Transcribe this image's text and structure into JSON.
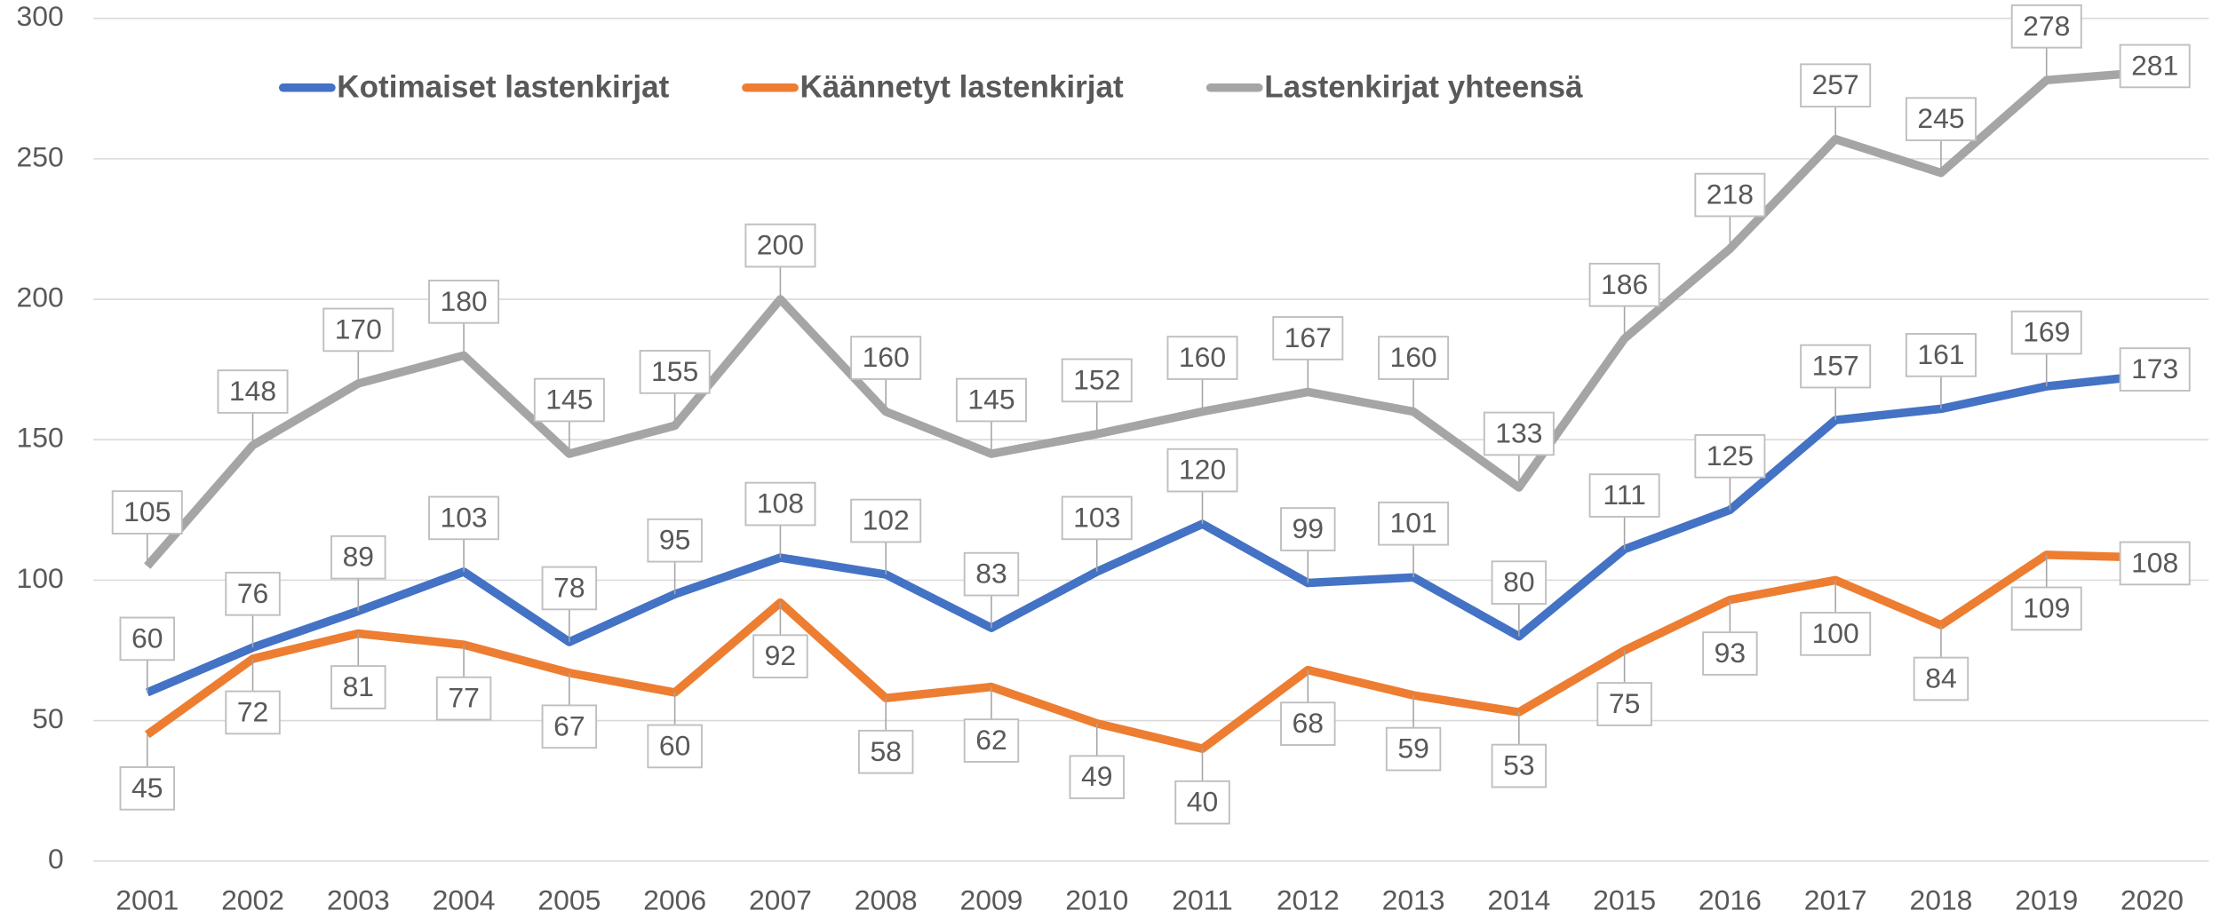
{
  "chart_data": {
    "type": "line",
    "categories": [
      "2001",
      "2002",
      "2003",
      "2004",
      "2005",
      "2006",
      "2007",
      "2008",
      "2009",
      "2010",
      "2011",
      "2012",
      "2013",
      "2014",
      "2015",
      "2016",
      "2017",
      "2018",
      "2019",
      "2020"
    ],
    "series": [
      {
        "name": "Kotimaiset lastenkirjat",
        "color": "#4472c4",
        "values": [
          60,
          76,
          89,
          103,
          78,
          95,
          108,
          102,
          83,
          103,
          120,
          99,
          101,
          80,
          111,
          125,
          157,
          161,
          169,
          173
        ]
      },
      {
        "name": "Käännetyt lastenkirjat",
        "color": "#ed7d31",
        "values": [
          45,
          72,
          81,
          77,
          67,
          60,
          92,
          58,
          62,
          49,
          40,
          68,
          59,
          53,
          75,
          93,
          100,
          84,
          109,
          108
        ]
      },
      {
        "name": "Lastenkirjat yhteensä",
        "color": "#a5a5a5",
        "values": [
          105,
          148,
          170,
          180,
          145,
          155,
          200,
          160,
          145,
          152,
          160,
          167,
          160,
          133,
          186,
          218,
          257,
          245,
          278,
          281
        ]
      }
    ],
    "ylim": [
      0,
      300
    ],
    "yticks": [
      0,
      50,
      100,
      150,
      200,
      250,
      300
    ],
    "grid": true,
    "legend": "top"
  }
}
